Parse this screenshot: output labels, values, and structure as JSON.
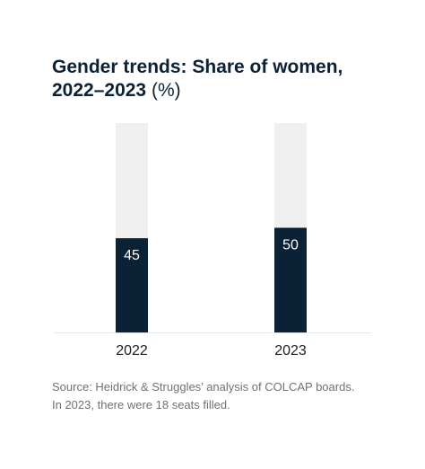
{
  "title_main": "Gender trends: Share of women, 2022–2023",
  "title_unit": "(%)",
  "source_lines": [
    "Source: Heidrick & Struggles’ analysis of COLCAP boards.",
    "In 2023, there were 18 seats filled."
  ],
  "colors": {
    "bar_fill": "#0b2136",
    "bar_track": "#efefef",
    "baseline": "#e3e6ea",
    "value_label": "#ffffff",
    "tick_label": "#1d1d1d"
  },
  "chart_data": {
    "type": "bar",
    "categories": [
      "2022",
      "2023"
    ],
    "values": [
      45,
      50
    ],
    "data_labels": [
      "45",
      "50"
    ],
    "ylim": [
      0,
      100
    ],
    "stacked_remainder_track": true,
    "grid": false,
    "legend": "none",
    "xlabel": "",
    "ylabel": ""
  }
}
